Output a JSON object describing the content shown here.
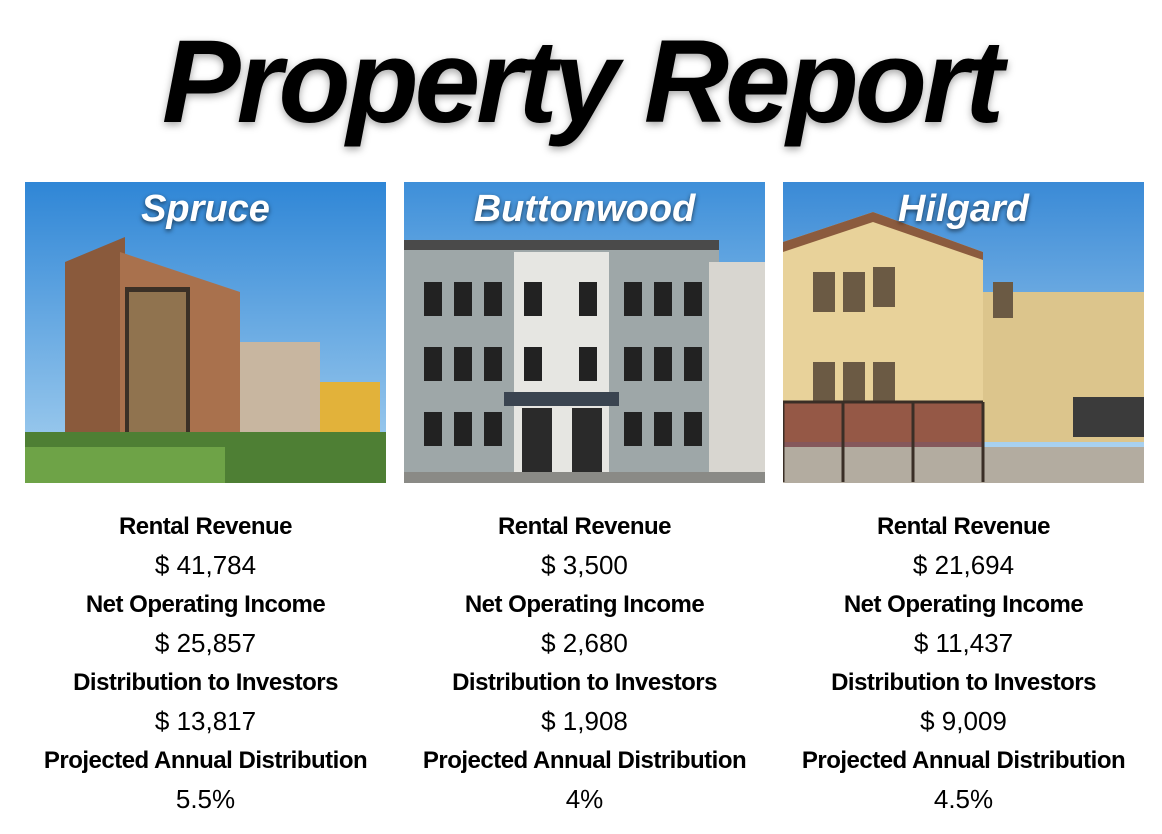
{
  "header": {
    "title": "Property Report"
  },
  "properties": [
    {
      "name": "Spruce",
      "metrics": [
        {
          "label": "Rental Revenue",
          "value": "$ 41,784"
        },
        {
          "label": "Net Operating Income",
          "value": "$ 25,857"
        },
        {
          "label": "Distribution to Investors",
          "value": "$ 13,817"
        },
        {
          "label": "Projected Annual Distribution",
          "value": "5.5%"
        }
      ]
    },
    {
      "name": "Buttonwood",
      "metrics": [
        {
          "label": "Rental Revenue",
          "value": "$ 3,500"
        },
        {
          "label": "Net Operating Income",
          "value": "$ 2,680"
        },
        {
          "label": "Distribution to Investors",
          "value": "$ 1,908"
        },
        {
          "label": "Projected Annual Distribution",
          "value": "4%"
        }
      ]
    },
    {
      "name": "Hilgard",
      "metrics": [
        {
          "label": "Rental Revenue",
          "value": "$ 21,694"
        },
        {
          "label": "Net Operating Income",
          "value": "$ 11,437"
        },
        {
          "label": "Distribution to Investors",
          "value": "$ 9,009"
        },
        {
          "label": "Projected Annual Distribution",
          "value": "4.5%"
        }
      ]
    }
  ]
}
